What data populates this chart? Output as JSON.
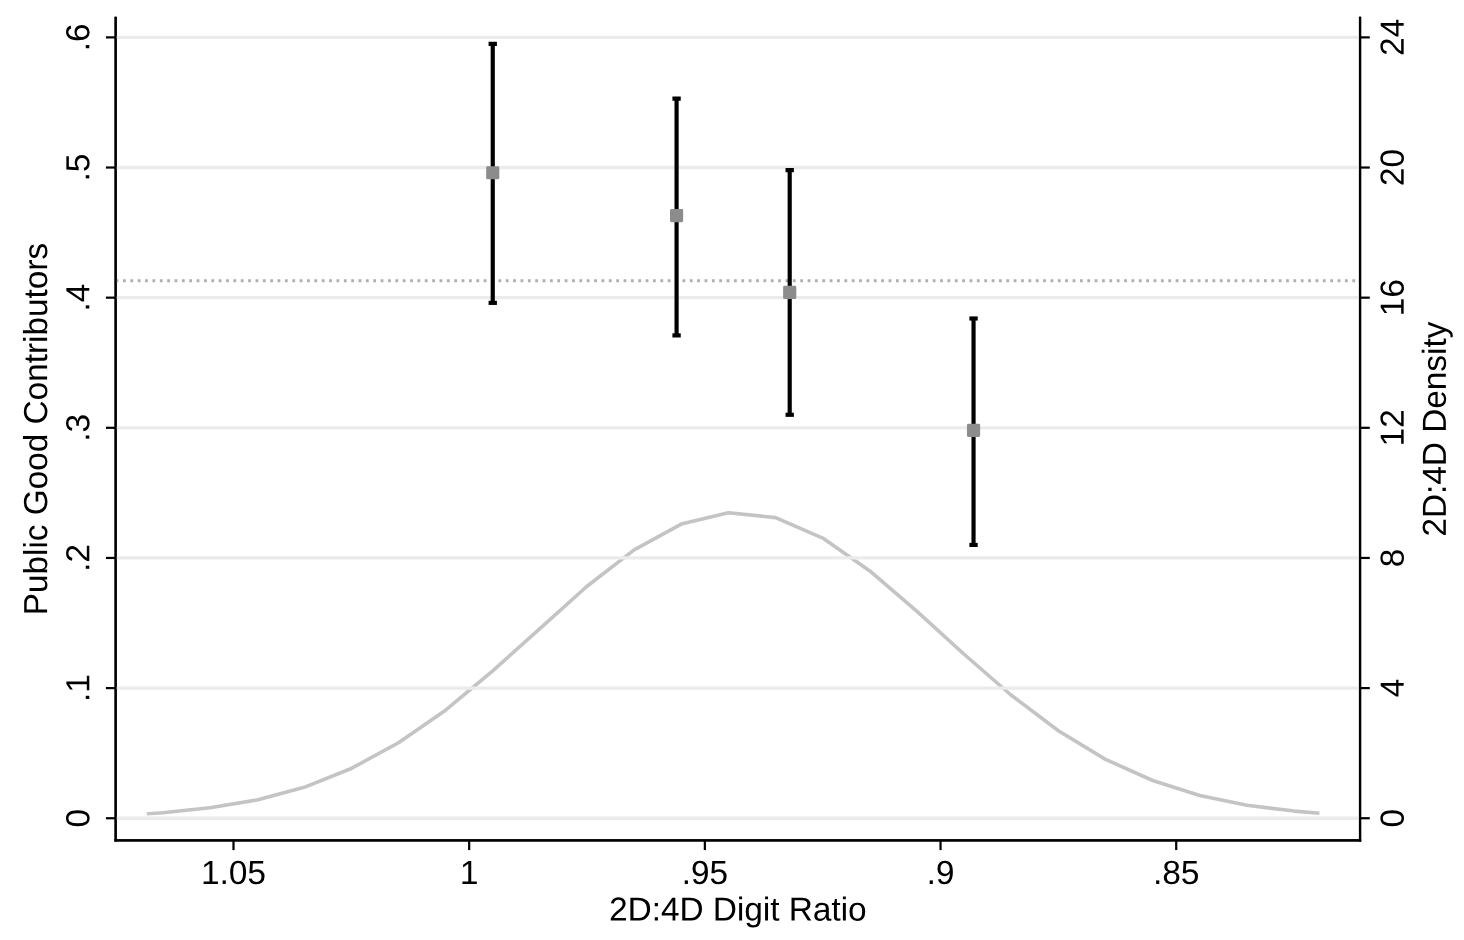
{
  "chart_data": {
    "type": "scatter",
    "xlabel": "2D:4D Digit Ratio",
    "ylabel": "Public Good Contributors",
    "y2label": "2D:4D Density",
    "xlim": [
      1.075,
      0.811
    ],
    "xticks": [
      {
        "value": 1.05,
        "label": "1.05"
      },
      {
        "value": 1,
        "label": "1"
      },
      {
        "value": 0.95,
        "label": ".95"
      },
      {
        "value": 0.9,
        "label": ".9"
      },
      {
        "value": 0.85,
        "label": ".85"
      }
    ],
    "ylim": [
      -0.017,
      0.615
    ],
    "yticks": [
      {
        "value": 0,
        "label": "0"
      },
      {
        "value": 0.1,
        "label": ".1"
      },
      {
        "value": 0.2,
        "label": ".2"
      },
      {
        "value": 0.3,
        "label": ".3"
      },
      {
        "value": 0.4,
        "label": ".4"
      },
      {
        "value": 0.5,
        "label": ".5"
      },
      {
        "value": 0.6,
        "label": ".6"
      }
    ],
    "y2lim": [
      -0.68,
      24.6
    ],
    "y2ticks": [
      0,
      4,
      8,
      12,
      16,
      20,
      24
    ],
    "grid": "y",
    "ref_lines": [
      {
        "axis": "y",
        "value": 0.413,
        "color": "#b0b0b0",
        "line_style": "dotted"
      }
    ],
    "series": [
      {
        "color": "#8c8c8c",
        "marker": "square",
        "x": [
          0.995,
          0.956,
          0.932,
          0.893
        ],
        "values": [
          0.496,
          0.463,
          0.404,
          0.298
        ],
        "errors": [
          [
            0.396,
            0.595
          ],
          [
            0.371,
            0.553
          ],
          [
            0.31,
            0.498
          ],
          [
            0.21,
            0.384
          ]
        ]
      },
      {
        "type": "line",
        "axis": "y2",
        "color": "#c4c4c4",
        "marker": "none",
        "x": [
          1.068,
          1.065,
          1.055,
          1.045,
          1.035,
          1.025,
          1.015,
          1.005,
          0.995,
          0.985,
          0.975,
          0.965,
          0.955,
          0.945,
          0.935,
          0.925,
          0.915,
          0.905,
          0.895,
          0.885,
          0.875,
          0.865,
          0.855,
          0.845,
          0.835,
          0.825,
          0.82
        ],
        "values": [
          0.14,
          0.17,
          0.32,
          0.56,
          0.95,
          1.53,
          2.32,
          3.32,
          4.53,
          5.83,
          7.13,
          8.25,
          9.04,
          9.39,
          9.24,
          8.61,
          7.6,
          6.36,
          5.04,
          3.78,
          2.69,
          1.81,
          1.16,
          0.7,
          0.4,
          0.22,
          0.16
        ]
      }
    ]
  }
}
